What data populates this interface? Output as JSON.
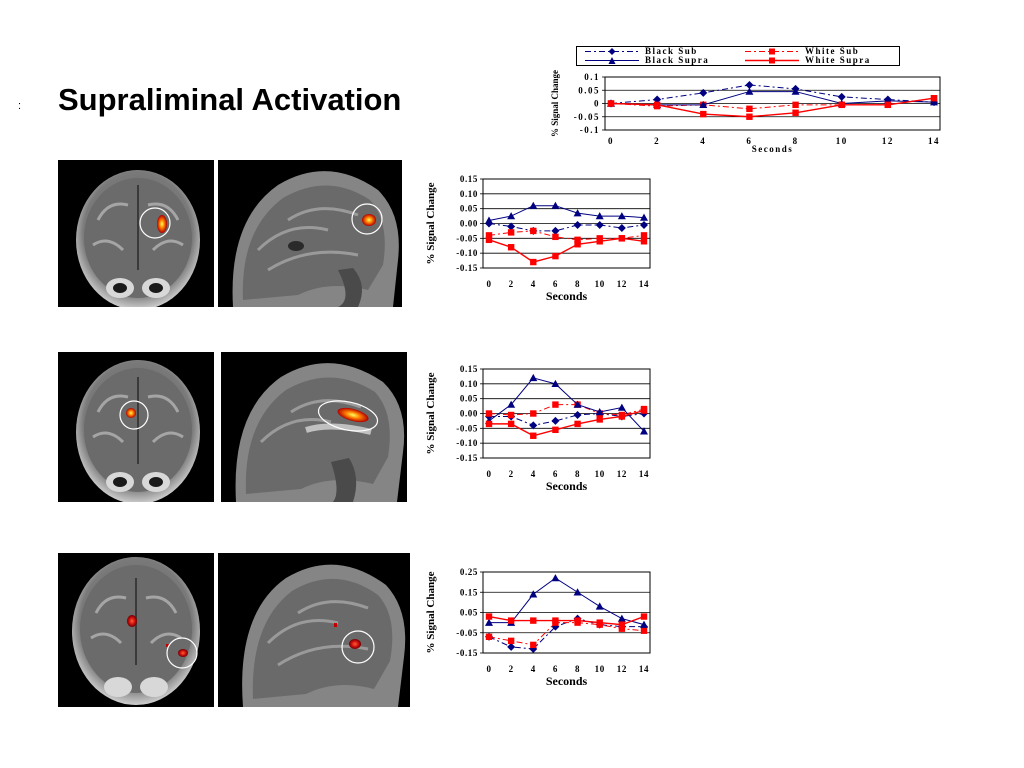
{
  "slide": {
    "marker": ":",
    "title": "Supraliminal Activation"
  },
  "legend": [
    {
      "name": "Black Sub",
      "color": "#000080",
      "marker": "diamond",
      "dash": "6,3,2,3"
    },
    {
      "name": "White Sub",
      "color": "#ff0000",
      "marker": "square",
      "dash": "6,3,2,3"
    },
    {
      "name": "Black Supra",
      "color": "#000080",
      "marker": "triangle",
      "dash": ""
    },
    {
      "name": "White Supra",
      "color": "#ff0000",
      "marker": "square",
      "dash": ""
    }
  ],
  "chart_data": [
    {
      "type": "line",
      "xlabel": "Seconds",
      "ylabel": "% Signal Change",
      "x": [
        0,
        2,
        4,
        6,
        8,
        10,
        12,
        14
      ],
      "ylim": [
        -0.1,
        0.1
      ],
      "yticks": [
        0.1,
        0.05,
        0,
        -0.05,
        -0.1
      ],
      "ytick_labels": [
        "0.1",
        "0.05",
        "0",
        "-0.05",
        "-0.1"
      ],
      "grid": true,
      "legend": "top",
      "series": [
        {
          "name": "Black Sub",
          "color": "#000080",
          "marker": "diamond",
          "style": "dashdot",
          "values": [
            0.0,
            0.015,
            0.04,
            0.07,
            0.055,
            0.025,
            0.015,
            0.005
          ]
        },
        {
          "name": "White Sub",
          "color": "#ff0000",
          "marker": "square",
          "style": "dashdot",
          "values": [
            0.0,
            -0.01,
            -0.005,
            -0.02,
            -0.005,
            -0.005,
            -0.005,
            0.02
          ]
        },
        {
          "name": "Black Supra",
          "color": "#000080",
          "marker": "triangle",
          "style": "solid",
          "values": [
            0.0,
            -0.005,
            -0.005,
            0.045,
            0.045,
            0.0,
            0.01,
            0.005
          ]
        },
        {
          "name": "White Supra",
          "color": "#ff0000",
          "marker": "square",
          "style": "solid",
          "values": [
            0.0,
            -0.005,
            -0.04,
            -0.05,
            -0.035,
            -0.005,
            -0.005,
            0.02
          ]
        }
      ]
    },
    {
      "type": "line",
      "xlabel": "Seconds",
      "ylabel": "% Signal Change",
      "x": [
        0,
        2,
        4,
        6,
        8,
        10,
        12,
        14
      ],
      "ylim": [
        -0.15,
        0.15
      ],
      "yticks": [
        0.15,
        0.1,
        0.05,
        0,
        -0.05,
        -0.1,
        -0.15
      ],
      "ytick_labels": [
        "0.15",
        "0.10",
        "0.05",
        "0.00",
        "-0.05",
        "-0.10",
        "-0.15"
      ],
      "grid": true,
      "legend": "none",
      "series": [
        {
          "name": "Black Sub",
          "color": "#000080",
          "marker": "diamond",
          "style": "dashdot",
          "values": [
            0.0,
            -0.01,
            -0.025,
            -0.025,
            -0.005,
            -0.005,
            -0.015,
            -0.005
          ]
        },
        {
          "name": "White Sub",
          "color": "#ff0000",
          "marker": "square",
          "style": "dashdot",
          "values": [
            -0.04,
            -0.03,
            -0.025,
            -0.045,
            -0.055,
            -0.05,
            -0.05,
            -0.04
          ]
        },
        {
          "name": "Black Supra",
          "color": "#000080",
          "marker": "triangle",
          "style": "solid",
          "values": [
            0.01,
            0.025,
            0.06,
            0.06,
            0.035,
            0.025,
            0.025,
            0.02
          ]
        },
        {
          "name": "White Supra",
          "color": "#ff0000",
          "marker": "square",
          "style": "solid",
          "values": [
            -0.055,
            -0.08,
            -0.13,
            -0.11,
            -0.07,
            -0.06,
            -0.05,
            -0.06
          ]
        }
      ]
    },
    {
      "type": "line",
      "xlabel": "Seconds",
      "ylabel": "% Signal Change",
      "x": [
        0,
        2,
        4,
        6,
        8,
        10,
        12,
        14
      ],
      "ylim": [
        -0.15,
        0.15
      ],
      "yticks": [
        0.15,
        0.1,
        0.05,
        0,
        -0.05,
        -0.1,
        -0.15
      ],
      "ytick_labels": [
        "0.15",
        "0.10",
        "0.05",
        "0.00",
        "-0.05",
        "-0.10",
        "-0.15"
      ],
      "grid": true,
      "legend": "none",
      "series": [
        {
          "name": "Black Sub",
          "color": "#000080",
          "marker": "diamond",
          "style": "dashdot",
          "values": [
            -0.01,
            -0.01,
            -0.04,
            -0.025,
            -0.005,
            0.0,
            -0.01,
            0.0
          ]
        },
        {
          "name": "White Sub",
          "color": "#ff0000",
          "marker": "square",
          "style": "dashdot",
          "values": [
            0.0,
            -0.005,
            0.0,
            0.03,
            0.03,
            0.0,
            -0.005,
            0.015
          ]
        },
        {
          "name": "Black Supra",
          "color": "#000080",
          "marker": "triangle",
          "style": "solid",
          "values": [
            -0.025,
            0.03,
            0.12,
            0.1,
            0.03,
            0.005,
            0.02,
            -0.06
          ]
        },
        {
          "name": "White Supra",
          "color": "#ff0000",
          "marker": "square",
          "style": "solid",
          "values": [
            -0.035,
            -0.035,
            -0.075,
            -0.055,
            -0.035,
            -0.02,
            -0.01,
            0.01
          ]
        }
      ]
    },
    {
      "type": "line",
      "xlabel": "Seconds",
      "ylabel": "% Signal Change",
      "x": [
        0,
        2,
        4,
        6,
        8,
        10,
        12,
        14
      ],
      "ylim": [
        -0.15,
        0.25
      ],
      "yticks": [
        0.25,
        0.15,
        0.05,
        -0.05,
        -0.15
      ],
      "ytick_labels": [
        "0.25",
        "0.15",
        "0.05",
        "-0.05",
        "-0.15"
      ],
      "grid": true,
      "legend": "none",
      "series": [
        {
          "name": "Black Sub",
          "color": "#000080",
          "marker": "diamond",
          "style": "dashdot",
          "values": [
            -0.07,
            -0.12,
            -0.13,
            -0.02,
            0.02,
            -0.01,
            -0.02,
            -0.02
          ]
        },
        {
          "name": "White Sub",
          "color": "#ff0000",
          "marker": "square",
          "style": "dashdot",
          "values": [
            -0.07,
            -0.09,
            -0.11,
            0.0,
            0.0,
            -0.01,
            -0.03,
            -0.04
          ]
        },
        {
          "name": "Black Supra",
          "color": "#000080",
          "marker": "triangle",
          "style": "solid",
          "values": [
            0.0,
            0.0,
            0.14,
            0.22,
            0.15,
            0.08,
            0.02,
            -0.01
          ]
        },
        {
          "name": "White Supra",
          "color": "#ff0000",
          "marker": "square",
          "style": "solid",
          "values": [
            0.03,
            0.01,
            0.01,
            0.01,
            0.01,
            0.0,
            -0.01,
            0.03
          ]
        }
      ]
    }
  ]
}
